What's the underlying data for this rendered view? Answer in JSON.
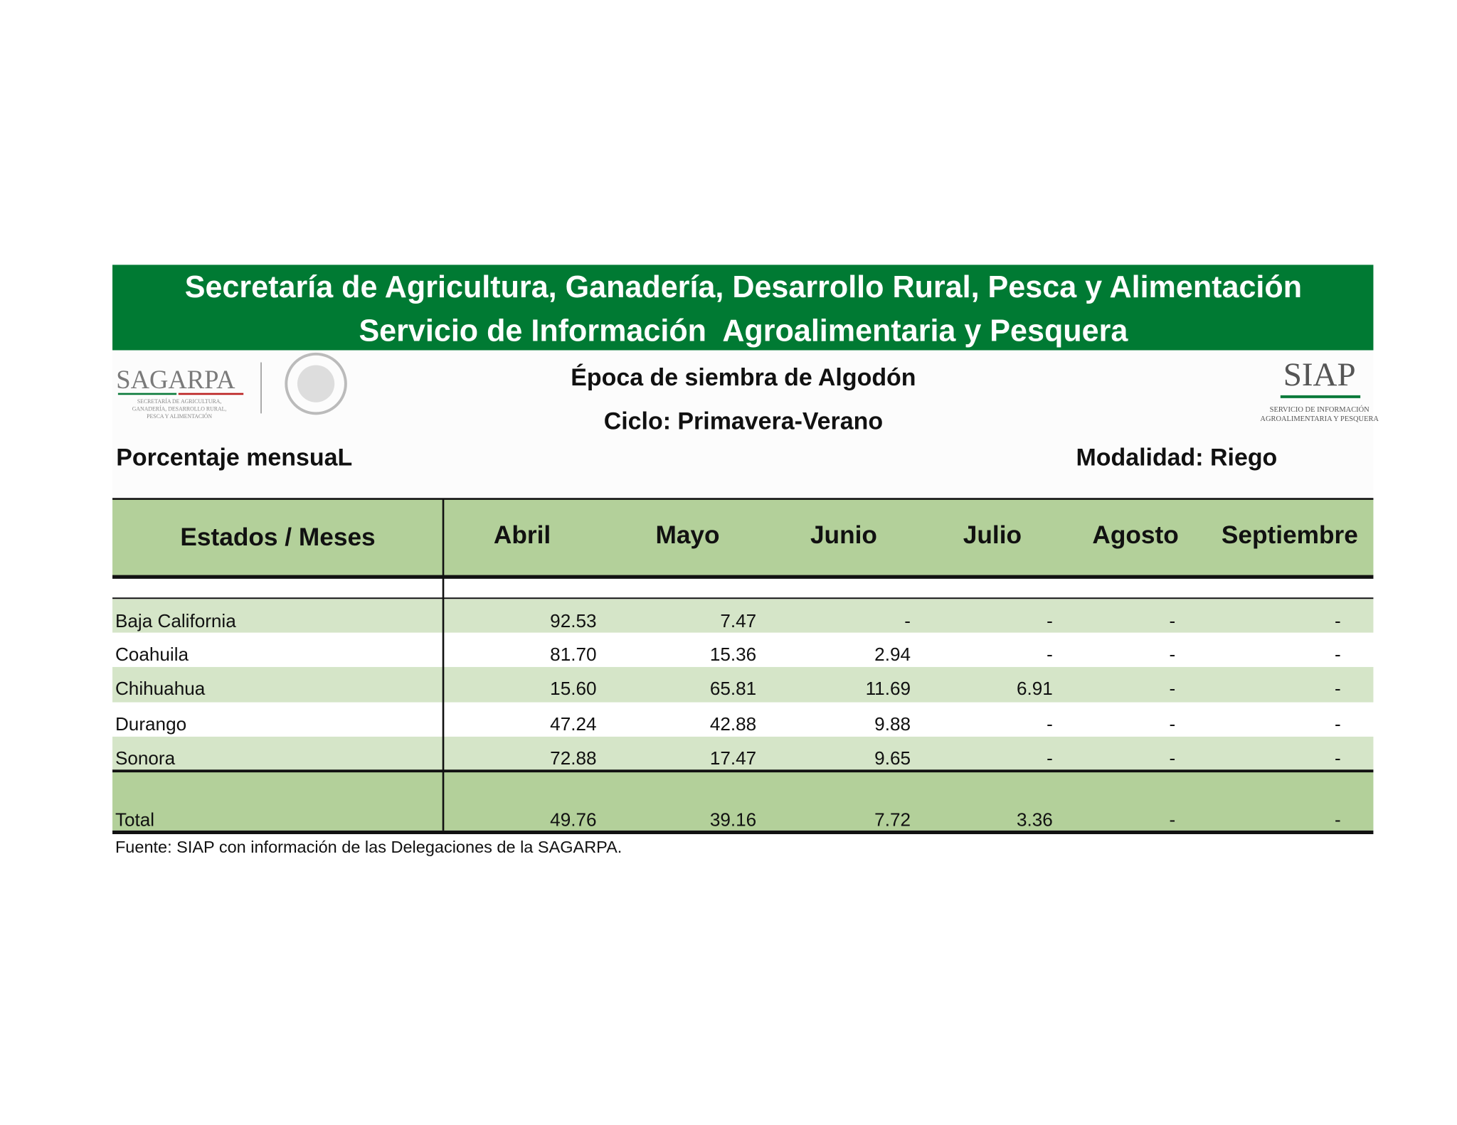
{
  "header": {
    "title": "Secretaría de Agricultura, Ganadería, Desarrollo Rural, Pesca y Alimentación",
    "subtitle": "Servicio de Información  Agroalimentaria y Pesquera"
  },
  "logos": {
    "sagarpa": {
      "name": "SAGARPA",
      "caption": [
        "SECRETARÍA DE AGRICULTURA,",
        "GANADERÍA, DESARROLLO RURAL,",
        "PESCA Y ALIMENTACIÓN"
      ]
    },
    "siap": {
      "name": "SIAP",
      "caption": [
        "SERVICIO DE INFORMACIÓN",
        "AGROALIMENTARIA Y PESQUERA"
      ]
    }
  },
  "report": {
    "title": "Época de siembra de Algodón",
    "cycle": "Ciclo: Primavera-Verano",
    "measure": "Porcentaje mensuaL",
    "mode": "Modalidad: Riego"
  },
  "table": {
    "columns": [
      "Estados / Meses",
      "Abril",
      "Mayo",
      "Junio",
      "Julio",
      "Agosto",
      "Septiembre"
    ],
    "rows": [
      [
        "Baja California",
        "92.53",
        "7.47",
        "-",
        "-",
        "-",
        "-"
      ],
      [
        "Coahuila",
        "81.70",
        "15.36",
        "2.94",
        "-",
        "-",
        "-"
      ],
      [
        "Chihuahua",
        "15.60",
        "65.81",
        "11.69",
        "6.91",
        "-",
        "-"
      ],
      [
        "Durango",
        "47.24",
        "42.88",
        "9.88",
        "-",
        "-",
        "-"
      ],
      [
        "Sonora",
        "72.88",
        "17.47",
        "9.65",
        "-",
        "-",
        "-"
      ]
    ],
    "total": [
      "Total",
      "49.76",
      "39.16",
      "7.72",
      "3.36",
      "-",
      "-"
    ]
  },
  "footer": "Fuente: SIAP con información de las Delegaciones de la SAGARPA."
}
